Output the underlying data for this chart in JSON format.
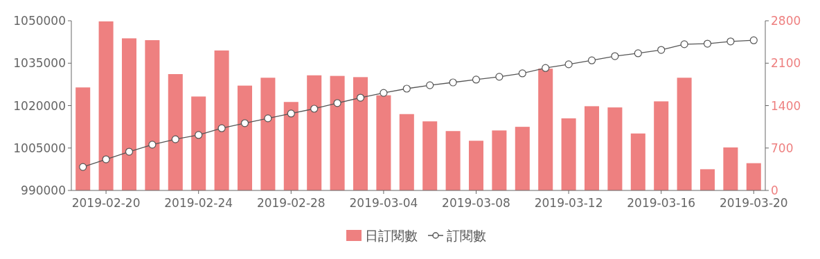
{
  "chart_data": {
    "type": "bar",
    "x": [
      "2019-02-19",
      "2019-02-20",
      "2019-02-21",
      "2019-02-22",
      "2019-02-23",
      "2019-02-24",
      "2019-02-25",
      "2019-02-26",
      "2019-02-27",
      "2019-02-28",
      "2019-03-01",
      "2019-03-02",
      "2019-03-03",
      "2019-03-04",
      "2019-03-05",
      "2019-03-06",
      "2019-03-07",
      "2019-03-08",
      "2019-03-09",
      "2019-03-10",
      "2019-03-11",
      "2019-03-12",
      "2019-03-13",
      "2019-03-14",
      "2019-03-15",
      "2019-03-16",
      "2019-03-17",
      "2019-03-18",
      "2019-03-19",
      "2019-03-20"
    ],
    "series": [
      {
        "name": "日訂閱數",
        "axis": "y2",
        "color": "#ee8080",
        "values": [
          1700,
          2790,
          2510,
          2480,
          1920,
          1550,
          2310,
          1730,
          1860,
          1460,
          1900,
          1890,
          1870,
          1570,
          1260,
          1140,
          980,
          820,
          990,
          1050,
          2010,
          1190,
          1390,
          1370,
          940,
          1470,
          1860,
          350,
          710,
          450
        ]
      },
      {
        "name": "訂閱數",
        "type": "line",
        "color": "#555555",
        "marker": "circle",
        "values": [
          998300,
          1001000,
          1003700,
          1006200,
          1008100,
          1009600,
          1012000,
          1013800,
          1015500,
          1017200,
          1018900,
          1020900,
          1022800,
          1024500,
          1026000,
          1027200,
          1028200,
          1029200,
          1030200,
          1031400,
          1033300,
          1034600,
          1036000,
          1037500,
          1038500,
          1039700,
          1041700,
          1041900,
          1042700,
          1043100
        ]
      }
    ],
    "xlim": [
      "2019-02-18T12:00",
      "2019-03-20T12:00"
    ],
    "xticks": [
      "2019-02-20",
      "2019-02-24",
      "2019-02-28",
      "2019-03-04",
      "2019-03-08",
      "2019-03-12",
      "2019-03-16",
      "2019-03-20"
    ],
    "ylim": [
      990000,
      1050000
    ],
    "yticks": [
      990000,
      1005000,
      1020000,
      1035000,
      1050000
    ],
    "y2lim": [
      0,
      2800
    ],
    "y2ticks": [
      0,
      700,
      1400,
      2100,
      2800
    ],
    "grid": false,
    "legend": "bottom"
  }
}
